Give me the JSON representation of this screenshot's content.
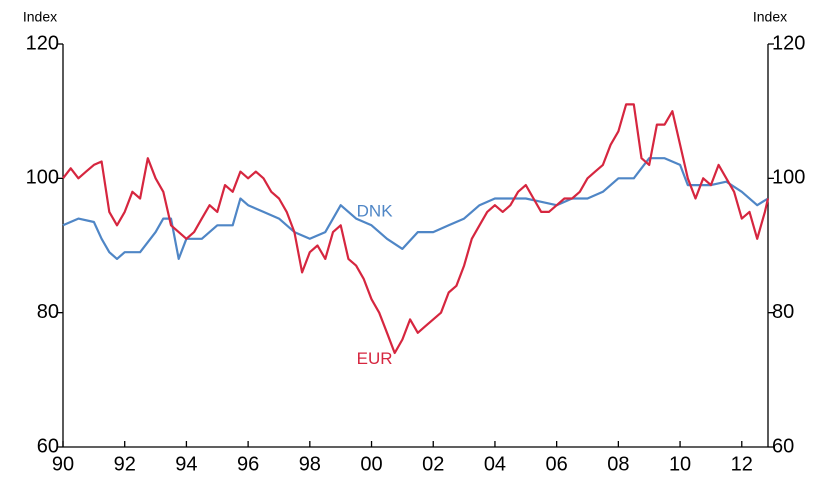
{
  "chart_data": {
    "type": "line",
    "ylabel": "Index",
    "y2label": "Index",
    "xlim": [
      1990,
      2012.85
    ],
    "xticks": [
      {
        "value": 1990,
        "label": "90"
      },
      {
        "value": 1992,
        "label": "92"
      },
      {
        "value": 1994,
        "label": "94"
      },
      {
        "value": 1996,
        "label": "96"
      },
      {
        "value": 1998,
        "label": "98"
      },
      {
        "value": 2000,
        "label": "00"
      },
      {
        "value": 2002,
        "label": "02"
      },
      {
        "value": 2004,
        "label": "04"
      },
      {
        "value": 2006,
        "label": "06"
      },
      {
        "value": 2008,
        "label": "08"
      },
      {
        "value": 2010,
        "label": "10"
      },
      {
        "value": 2012,
        "label": "12"
      }
    ],
    "ylim": [
      60,
      120
    ],
    "yticks": [
      60,
      80,
      100,
      120
    ],
    "y2lim": [
      60,
      120
    ],
    "y2ticks": [
      60,
      80,
      100,
      120
    ],
    "series": [
      {
        "name": "DNK",
        "color": "#4f86c6",
        "x": [
          1990,
          1990.5,
          1991,
          1991.25,
          1991.5,
          1991.75,
          1992,
          1992.5,
          1993,
          1993.25,
          1993.5,
          1993.75,
          1994,
          1994.5,
          1995,
          1995.5,
          1995.75,
          1996,
          1996.5,
          1997,
          1997.5,
          1998,
          1998.5,
          1999,
          1999.5,
          2000,
          2000.5,
          2001,
          2001.5,
          2002,
          2002.5,
          2003,
          2003.5,
          2004,
          2004.5,
          2005,
          2005.5,
          2006,
          2006.5,
          2007,
          2007.5,
          2008,
          2008.5,
          2009,
          2009.5,
          2010,
          2010.25,
          2010.5,
          2011,
          2011.5,
          2012,
          2012.5,
          2012.85
        ],
        "values": [
          93,
          94,
          93.5,
          91,
          89,
          88,
          89,
          89,
          92,
          94,
          94,
          88,
          91,
          91,
          93,
          93,
          97,
          96,
          95,
          94,
          92,
          91,
          92,
          96,
          94,
          93,
          91,
          89.5,
          92,
          92,
          93,
          94,
          96,
          97,
          97,
          97,
          96.5,
          96,
          97,
          97,
          98,
          100,
          100,
          103,
          103,
          102,
          99,
          99,
          99,
          99.5,
          98,
          96,
          97
        ]
      },
      {
        "name": "EUR",
        "color": "#d6263f",
        "x": [
          1990,
          1990.25,
          1990.5,
          1990.75,
          1991,
          1991.25,
          1991.5,
          1991.75,
          1992,
          1992.25,
          1992.5,
          1992.75,
          1993,
          1993.25,
          1993.5,
          1993.75,
          1994,
          1994.25,
          1994.5,
          1994.75,
          1995,
          1995.25,
          1995.5,
          1995.75,
          1996,
          1996.25,
          1996.5,
          1996.75,
          1997,
          1997.25,
          1997.5,
          1997.75,
          1998,
          1998.25,
          1998.5,
          1998.75,
          1999,
          1999.25,
          1999.5,
          1999.75,
          2000,
          2000.25,
          2000.5,
          2000.75,
          2001,
          2001.25,
          2001.5,
          2001.75,
          2002,
          2002.25,
          2002.5,
          2002.75,
          2003,
          2003.25,
          2003.5,
          2003.75,
          2004,
          2004.25,
          2004.5,
          2004.75,
          2005,
          2005.25,
          2005.5,
          2005.75,
          2006,
          2006.25,
          2006.5,
          2006.75,
          2007,
          2007.25,
          2007.5,
          2007.75,
          2008,
          2008.25,
          2008.5,
          2008.75,
          2009,
          2009.25,
          2009.5,
          2009.75,
          2010,
          2010.25,
          2010.5,
          2010.75,
          2011,
          2011.25,
          2011.5,
          2011.75,
          2012,
          2012.25,
          2012.5,
          2012.75,
          2012.85
        ],
        "values": [
          100,
          101.5,
          100,
          101,
          102,
          102.5,
          95,
          93,
          95,
          98,
          97,
          103,
          100,
          98,
          93,
          92,
          91,
          92,
          94,
          96,
          95,
          99,
          98,
          101,
          100,
          101,
          100,
          98,
          97,
          95,
          92,
          86,
          89,
          90,
          88,
          92,
          93,
          88,
          87,
          85,
          82,
          80,
          77,
          74,
          76,
          79,
          77,
          78,
          79,
          80,
          83,
          84,
          87,
          91,
          93,
          95,
          96,
          95,
          96,
          98,
          99,
          97,
          95,
          95,
          96,
          97,
          97,
          98,
          100,
          101,
          102,
          105,
          107,
          111,
          111,
          103,
          102,
          108,
          108,
          110,
          105,
          100,
          97,
          100,
          99,
          102,
          100,
          98,
          94,
          95,
          91,
          95,
          97
        ]
      }
    ]
  }
}
